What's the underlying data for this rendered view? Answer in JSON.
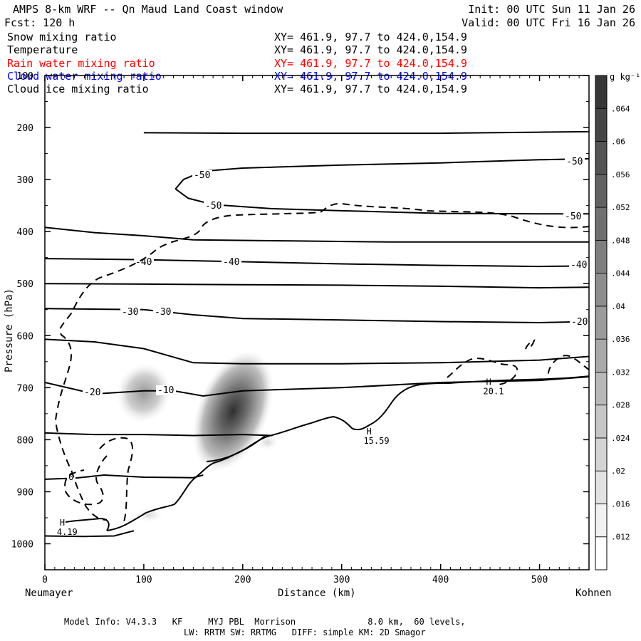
{
  "header": {
    "title": "AMPS 8-km WRF -- Qn Maud Land Coast window",
    "init": "Init: 00 UTC Sun 11 Jan 26",
    "fcst": "Fcst: 120 h",
    "valid": "Valid: 00 UTC Fri 16 Jan 26"
  },
  "legend": [
    {
      "name": "Snow mixing ratio",
      "xy": "XY= 461.9, 97.7 to 424.0,154.9",
      "color": "#000000"
    },
    {
      "name": "Temperature",
      "xy": "XY= 461.9, 97.7 to 424.0,154.9",
      "color": "#000000"
    },
    {
      "name": "Rain water mixing ratio",
      "xy": "XY= 461.9, 97.7 to 424.0,154.9",
      "color": "#ff0000"
    },
    {
      "name": "Cloud water mixing ratio",
      "xy": "XY= 461.9, 97.7 to 424.0,154.9",
      "color": "#0000ff"
    },
    {
      "name": "Cloud ice mixing ratio",
      "xy": "XY= 461.9, 97.7 to 424.0,154.9",
      "color": "#000000"
    }
  ],
  "footer": {
    "line1": "Model Info: V4.3.3   KF     MYJ PBL  Morrison              8.0 km,  60 levels,",
    "line2": "LW: RRTM SW: RRTMG   DIFF: simple KM: 2D Smagor"
  },
  "chart_data": {
    "type": "contour",
    "xlabel": "Distance (km)",
    "ylabel": "Pressure (hPa)",
    "xlim": [
      0,
      550
    ],
    "ylim": [
      1050,
      100
    ],
    "xticks": [
      0,
      100,
      200,
      300,
      400,
      500
    ],
    "xtick_labels": [
      "0",
      "100",
      "200",
      "300",
      "400",
      "500"
    ],
    "yticks": [
      100,
      200,
      300,
      400,
      500,
      600,
      700,
      800,
      900,
      1000
    ],
    "ytick_labels": [
      "100",
      "200",
      "300",
      "400",
      "500",
      "600",
      "700",
      "800",
      "900",
      "1000"
    ],
    "left_endpoint": "Neumayer",
    "right_endpoint": "Kohnen",
    "colorbar": {
      "unit": "g kg⁻¹",
      "labels": [
        ".012",
        ".016",
        ".02",
        ".024",
        ".028",
        ".032",
        ".036",
        ".04",
        ".044",
        ".048",
        ".052",
        ".056",
        ".06",
        ".064"
      ],
      "range": [
        0.008,
        0.068
      ]
    },
    "temperature_contours": [
      {
        "label": "-50",
        "points": [
          [
            100,
            210
          ],
          [
            200,
            211
          ],
          [
            300,
            211
          ],
          [
            400,
            211
          ],
          [
            500,
            209
          ],
          [
            550,
            208
          ]
        ]
      },
      {
        "label": "-50",
        "points": [
          [
            132,
            318
          ],
          [
            140,
            300
          ],
          [
            160,
            284
          ],
          [
            200,
            278
          ],
          [
            300,
            272
          ],
          [
            400,
            268
          ],
          [
            500,
            262
          ],
          [
            550,
            260
          ]
        ]
      },
      {
        "label": "-50",
        "points": [
          [
            132,
            318
          ],
          [
            145,
            336
          ],
          [
            170,
            348
          ],
          [
            230,
            356
          ],
          [
            300,
            360
          ],
          [
            400,
            365
          ],
          [
            500,
            366
          ],
          [
            550,
            366
          ]
        ]
      },
      {
        "label": "-40",
        "points": [
          [
            0,
            392
          ],
          [
            50,
            402
          ],
          [
            100,
            408
          ],
          [
            150,
            416
          ],
          [
            250,
            418
          ],
          [
            350,
            420
          ],
          [
            450,
            420
          ],
          [
            550,
            420
          ]
        ]
      },
      {
        "label": "-40",
        "points": [
          [
            0,
            452
          ],
          [
            100,
            454
          ],
          [
            200,
            458
          ],
          [
            300,
            462
          ],
          [
            400,
            465
          ],
          [
            500,
            467
          ],
          [
            550,
            466
          ]
        ]
      },
      {
        "label": "-40",
        "points": [
          [
            0,
            500
          ],
          [
            100,
            501
          ],
          [
            200,
            502
          ],
          [
            300,
            503
          ],
          [
            400,
            505
          ],
          [
            500,
            508
          ],
          [
            550,
            507
          ]
        ]
      },
      {
        "label": "-30",
        "points": [
          [
            0,
            548
          ],
          [
            100,
            550
          ],
          [
            150,
            560
          ],
          [
            200,
            567
          ],
          [
            300,
            570
          ],
          [
            400,
            573
          ],
          [
            500,
            575
          ],
          [
            550,
            573
          ]
        ]
      },
      {
        "label": "-30",
        "points": [
          [
            0,
            607
          ],
          [
            50,
            612
          ],
          [
            100,
            625
          ],
          [
            150,
            652
          ],
          [
            200,
            654
          ],
          [
            300,
            654
          ],
          [
            400,
            652
          ],
          [
            500,
            647
          ],
          [
            550,
            640
          ]
        ]
      },
      {
        "label": "-20",
        "points": [
          [
            0,
            690
          ],
          [
            50,
            712
          ],
          [
            100,
            706
          ],
          [
            130,
            706
          ],
          [
            160,
            716
          ],
          [
            200,
            706
          ],
          [
            300,
            700
          ],
          [
            400,
            690
          ],
          [
            500,
            686
          ],
          [
            550,
            679
          ]
        ]
      },
      {
        "label": "-20",
        "points": [
          [
            0,
            787
          ],
          [
            50,
            790
          ],
          [
            100,
            790
          ],
          [
            150,
            792
          ],
          [
            200,
            790
          ],
          [
            230,
            792
          ]
        ]
      },
      {
        "label": "-10",
        "points": [
          [
            0,
            876
          ],
          [
            30,
            874
          ],
          [
            60,
            868
          ],
          [
            100,
            872
          ],
          [
            150,
            873
          ],
          [
            160,
            868
          ]
        ]
      },
      {
        "label": "0",
        "points": [
          [
            0,
            985
          ],
          [
            40,
            986
          ],
          [
            70,
            985
          ],
          [
            90,
            975
          ]
        ]
      }
    ],
    "highs": [
      {
        "label": "H",
        "value": "4.19",
        "x": 15,
        "p": 965
      },
      {
        "label": "H",
        "value": "15.59",
        "x": 325,
        "p": 790
      },
      {
        "label": "H",
        "value": "20.1",
        "x": 446,
        "p": 695
      }
    ],
    "shading_maxima": [
      {
        "x": 100,
        "p": 710,
        "value": 0.036
      },
      {
        "x": 190,
        "p": 745,
        "value": 0.064
      }
    ]
  }
}
